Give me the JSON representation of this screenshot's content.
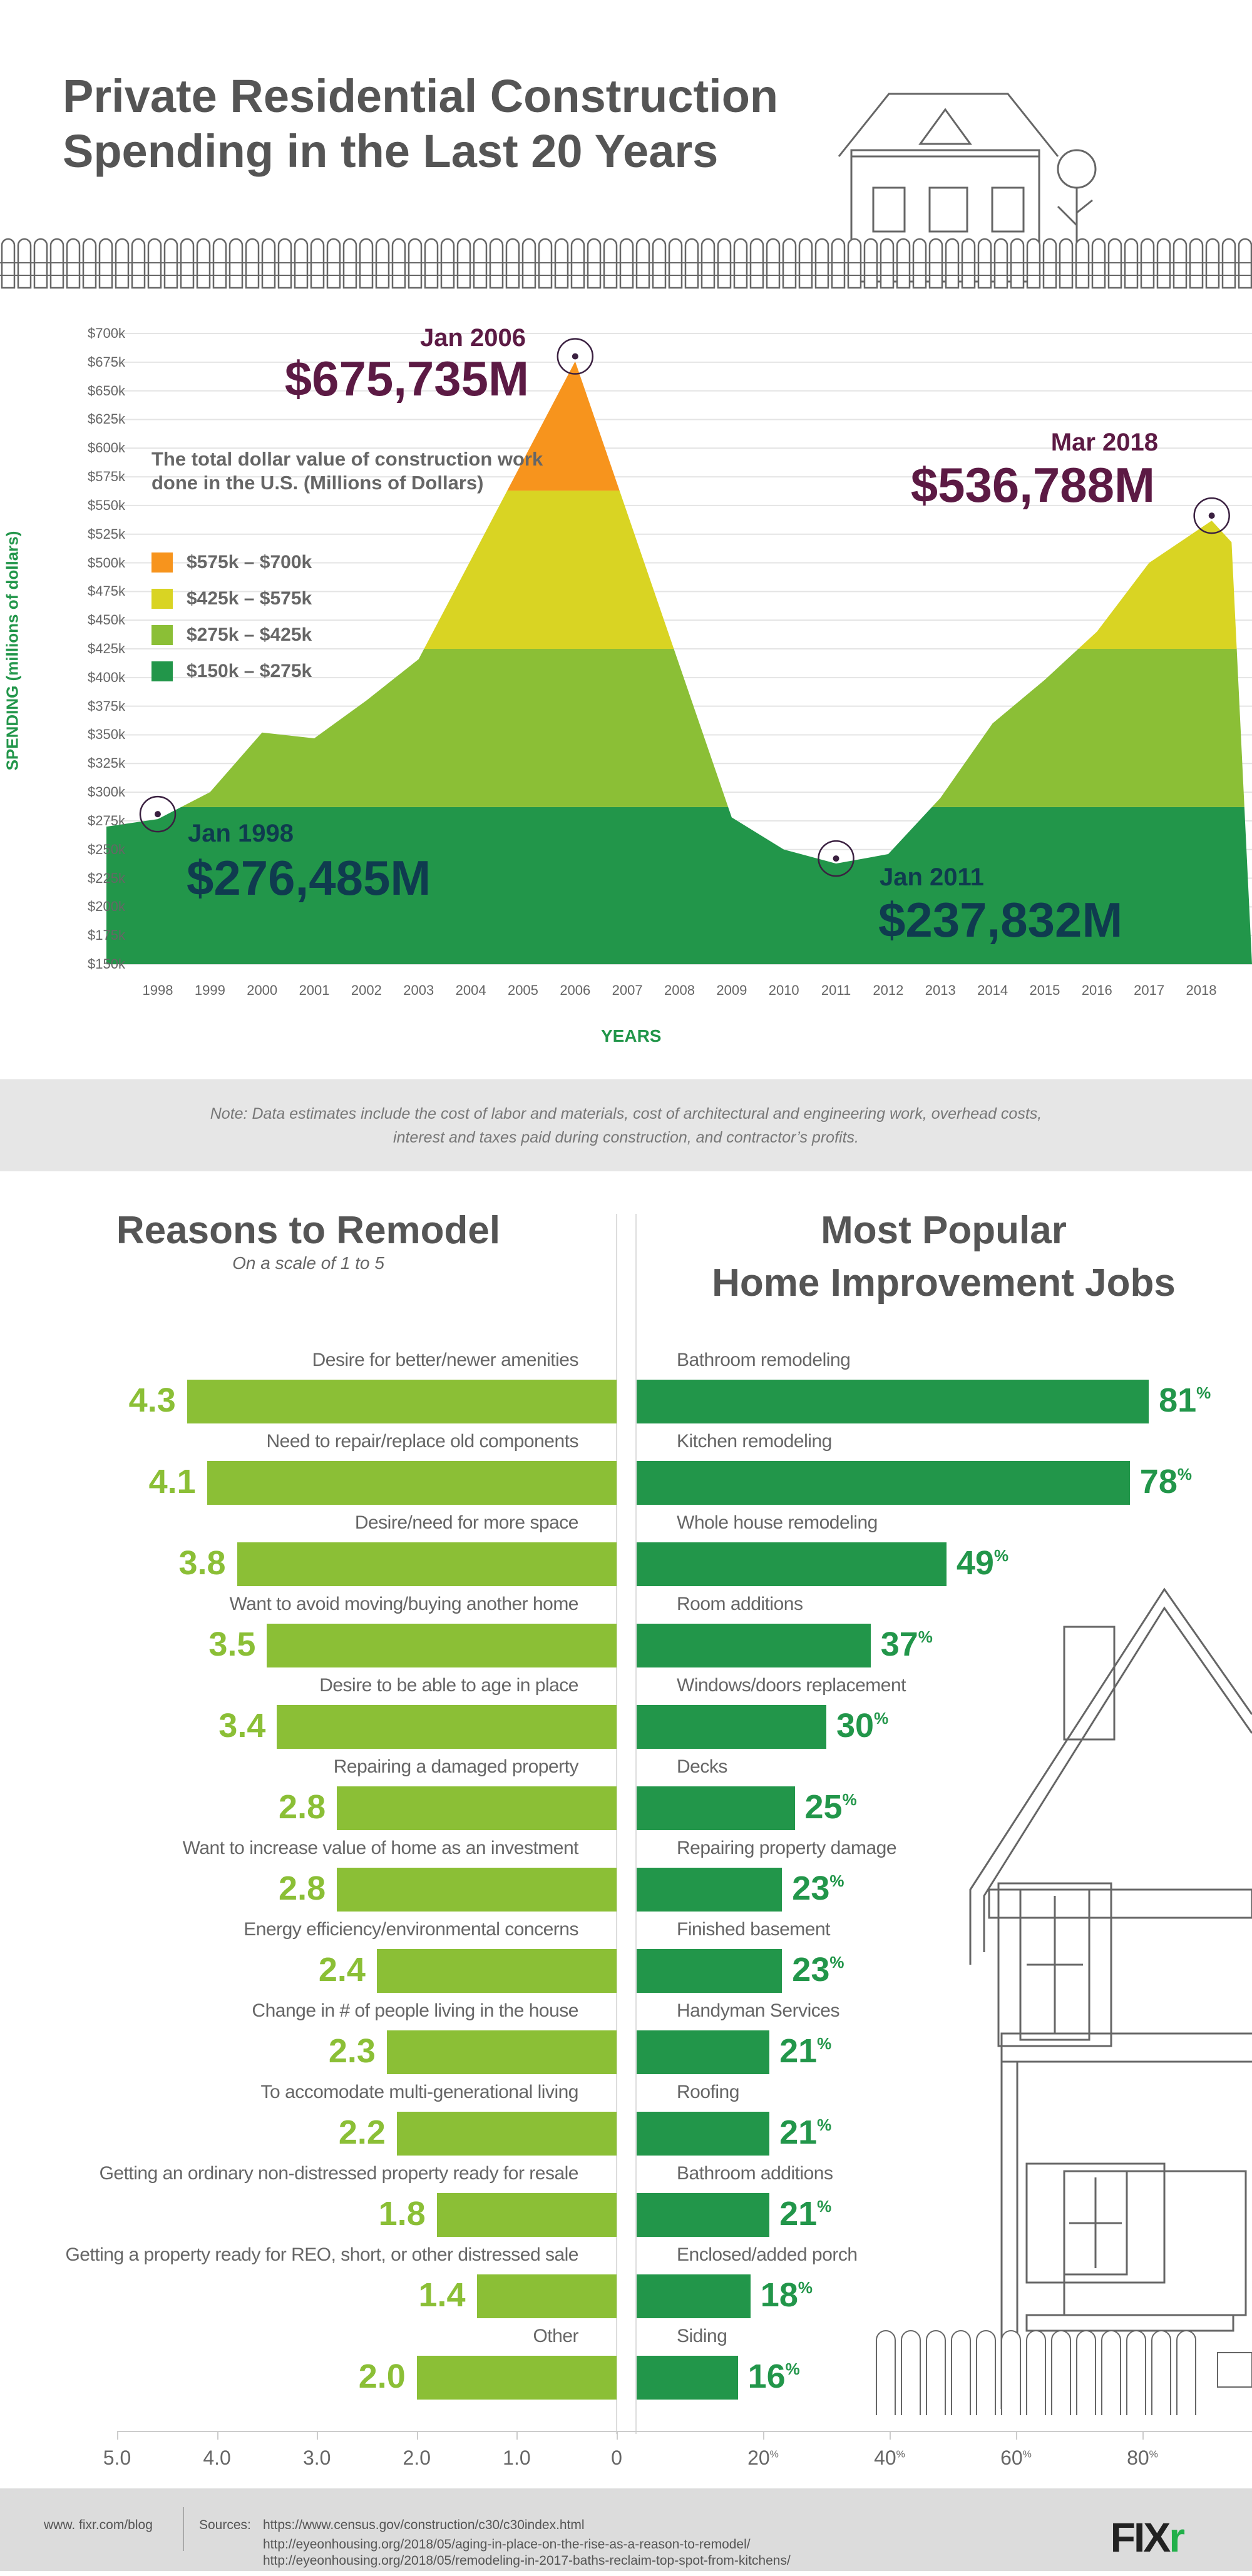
{
  "header": {
    "title_line1": "Private Residential Construction",
    "title_line2": "Spending in the Last 20 Years"
  },
  "chart_data": {
    "type": "area",
    "title": "Private Residential Construction Spending in the Last 20 Years",
    "xlabel": "YEARS",
    "ylabel": "SPENDING (millions of dollars)",
    "ylim": [
      150,
      700
    ],
    "y_ticks": [
      "$700k",
      "$675k",
      "$650k",
      "$625k",
      "$600k",
      "$575k",
      "$550k",
      "$525k",
      "$500k",
      "$475k",
      "$450k",
      "$425k",
      "$400k",
      "$375k",
      "$350k",
      "$325k",
      "$300k",
      "$275k",
      "$250k",
      "$225k",
      "$200k",
      "$175k",
      "$150k"
    ],
    "x_ticks": [
      "1998",
      "1999",
      "2000",
      "2001",
      "2002",
      "2003",
      "2004",
      "2005",
      "2006",
      "2007",
      "2008",
      "2009",
      "2010",
      "2011",
      "2012",
      "2013",
      "2014",
      "2015",
      "2016",
      "2017",
      "2018"
    ],
    "x": [
      1997.05,
      1998,
      1999,
      2000,
      2001,
      2002,
      2003,
      2006,
      2009,
      2010,
      2011,
      2012,
      2013,
      2014,
      2015,
      2016,
      2017,
      2018.2,
      2018.58
    ],
    "values": [
      270,
      276.5,
      300,
      352,
      347,
      380,
      416,
      675.7,
      278,
      250,
      237.8,
      246,
      295,
      360,
      398,
      440,
      500,
      536.8,
      518
    ],
    "band_boundaries": [
      287,
      425,
      563
    ],
    "legend_title": "The total dollar value of construction work done in the U.S. (Millions of Dollars)",
    "legend": [
      {
        "label": "$575k – $700k",
        "color": "#f7941d"
      },
      {
        "label": "$425k – $575k",
        "color": "#d9d423"
      },
      {
        "label": "$275k – $425k",
        "color": "#8bbf36"
      },
      {
        "label": "$150k – $275k",
        "color": "#22964a"
      }
    ],
    "annotations": [
      {
        "date": "Jan 2006",
        "value": "$675,735M",
        "x": 2006,
        "y": 675.7
      },
      {
        "date": "Mar 2018",
        "value": "$536,788M",
        "x": 2018.2,
        "y": 536.8
      },
      {
        "date": "Jan 1998",
        "value": "$276,485M",
        "x": 1998,
        "y": 276.5
      },
      {
        "date": "Jan 2011",
        "value": "$237,832M",
        "x": 2011,
        "y": 237.8
      }
    ]
  },
  "note": "Note: Data estimates include the cost of labor and materials, cost of architectural and engineering work, overhead costs, interest and taxes paid during construction, and contractor’s profits.",
  "reasons": {
    "title": "Reasons to Remodel",
    "subtitle": "On a scale of 1 to 5",
    "color": "#8bbf36",
    "items": [
      {
        "label": "Desire for better/newer amenities",
        "value": 4.3
      },
      {
        "label": "Need to repair/replace old components",
        "value": 4.1
      },
      {
        "label": "Desire/need for more space",
        "value": 3.8
      },
      {
        "label": "Want to avoid moving/buying another home",
        "value": 3.5
      },
      {
        "label": "Desire to be able to age in place",
        "value": 3.4
      },
      {
        "label": "Repairing a damaged property",
        "value": 2.8
      },
      {
        "label": "Want to increase value of home as an investment",
        "value": 2.8
      },
      {
        "label": "Energy efficiency/environmental concerns",
        "value": 2.4
      },
      {
        "label": "Change in # of people living in the house",
        "value": 2.3
      },
      {
        "label": "To accomodate multi-generational living",
        "value": 2.2
      },
      {
        "label": "Getting an ordinary non-distressed property ready for resale",
        "value": 1.8
      },
      {
        "label": "Getting a property ready for REO, short, or other distressed sale",
        "value": 1.4
      },
      {
        "label": "Other",
        "value": 2.0
      }
    ],
    "axis": [
      "5.0",
      "4.0",
      "3.0",
      "2.0",
      "1.0",
      "0"
    ]
  },
  "jobs": {
    "title_line1": "Most Popular",
    "title_line2": "Home Improvement Jobs",
    "color": "#22964a",
    "items": [
      {
        "label": "Bathroom remodeling",
        "value": 81
      },
      {
        "label": "Kitchen remodeling",
        "value": 78
      },
      {
        "label": "Whole house remodeling",
        "value": 49
      },
      {
        "label": "Room additions",
        "value": 37
      },
      {
        "label": "Windows/doors replacement",
        "value": 30
      },
      {
        "label": "Decks",
        "value": 25
      },
      {
        "label": "Repairing property damage",
        "value": 23
      },
      {
        "label": "Finished basement",
        "value": 23
      },
      {
        "label": "Handyman Services",
        "value": 21
      },
      {
        "label": "Roofing",
        "value": 21
      },
      {
        "label": "Bathroom additions",
        "value": 21
      },
      {
        "label": "Enclosed/added porch",
        "value": 18
      },
      {
        "label": "Siding",
        "value": 16
      }
    ],
    "axis": [
      "20",
      "40",
      "60",
      "80"
    ],
    "pct": "%"
  },
  "footer": {
    "site": "www. fixr.com/blog",
    "sources_label": "Sources:",
    "sources": [
      "https://www.census.gov/construction/c30/c30index.html",
      "http://eyeonhousing.org/2018/05/aging-in-place-on-the-rise-as-a-reason-to-remodel/",
      "http://eyeonhousing.org/2018/05/remodeling-in-2017-baths-reclaim-top-spot-from-kitchens/"
    ],
    "logo": "FIXR"
  }
}
